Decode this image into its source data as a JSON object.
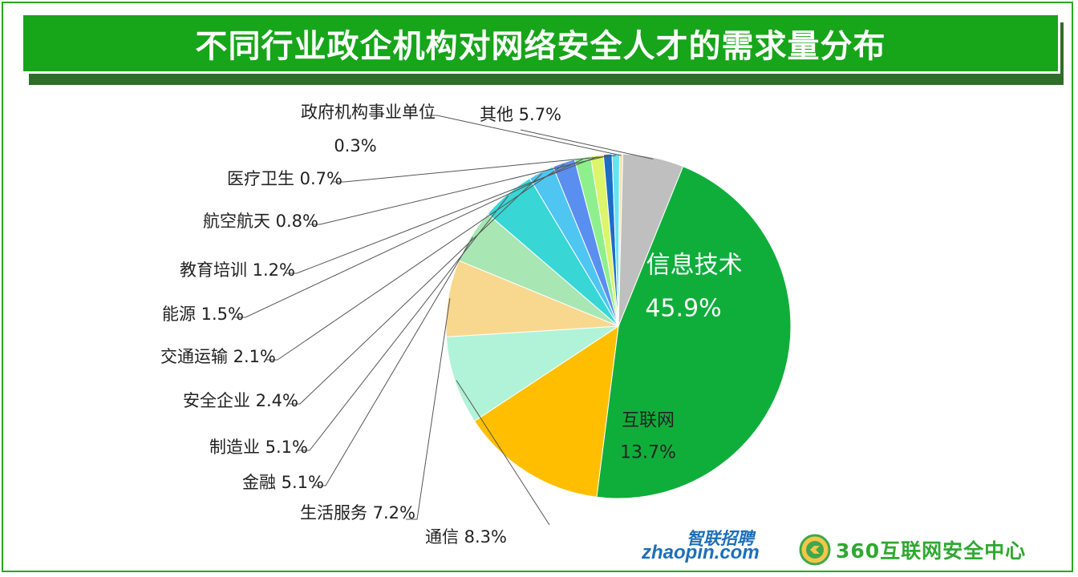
{
  "title": "不同行业政企机构对网络安全人才的需求量分布",
  "colors": {
    "frame": "#27a81f",
    "title_bg": "#17a51a",
    "title_shadow": "#2f6d2a"
  },
  "chart_data": {
    "type": "pie",
    "start_angle_deg": 22,
    "direction": "clockwise",
    "slices": [
      {
        "label": "IT信息技术",
        "value": 45.9,
        "value_text": "45.9%",
        "color": "#0fae3b",
        "label_position": "inside"
      },
      {
        "label": "互联网",
        "value": 13.7,
        "value_text": "13.7%",
        "color": "#ffbf00",
        "label_position": "inside"
      },
      {
        "label": "通信",
        "value": 8.3,
        "value_text": "8.3%",
        "color": "#b0f3d8",
        "label_position": "outside"
      },
      {
        "label": "生活服务",
        "value": 7.2,
        "value_text": "7.2%",
        "color": "#f7d88e",
        "label_position": "outside"
      },
      {
        "label": "金融",
        "value": 5.1,
        "value_text": "5.1%",
        "color": "#a8e6b4",
        "label_position": "outside"
      },
      {
        "label": "制造业",
        "value": 5.1,
        "value_text": "5.1%",
        "color": "#39d6d6",
        "label_position": "outside"
      },
      {
        "label": "安全企业",
        "value": 2.4,
        "value_text": "2.4%",
        "color": "#4fc6f2",
        "label_position": "outside"
      },
      {
        "label": "交通运输",
        "value": 2.1,
        "value_text": "2.1%",
        "color": "#5a8ff0",
        "label_position": "outside"
      },
      {
        "label": "能源",
        "value": 1.5,
        "value_text": "1.5%",
        "color": "#8ef08c",
        "label_position": "outside"
      },
      {
        "label": "教育培训",
        "value": 1.2,
        "value_text": "1.2%",
        "color": "#dcf56a",
        "label_position": "outside"
      },
      {
        "label": "航空航天",
        "value": 0.8,
        "value_text": "0.8%",
        "color": "#1a6ec8",
        "label_position": "outside"
      },
      {
        "label": "医疗卫生",
        "value": 0.7,
        "value_text": "0.7%",
        "color": "#63e5f0",
        "label_position": "outside"
      },
      {
        "label": "政府机构事业单位",
        "value": 0.3,
        "value_text": "0.3%",
        "color": "#f5e3a8",
        "label_position": "outside"
      },
      {
        "label": "其他",
        "value": 5.7,
        "value_text": "5.7%",
        "color": "#bfbfbf",
        "label_position": "outside"
      }
    ]
  },
  "logos": {
    "zhaopin_cn": "智联招聘",
    "zhaopin_en": "zhaopin.com",
    "safety_center": "360互联网安全中心"
  }
}
